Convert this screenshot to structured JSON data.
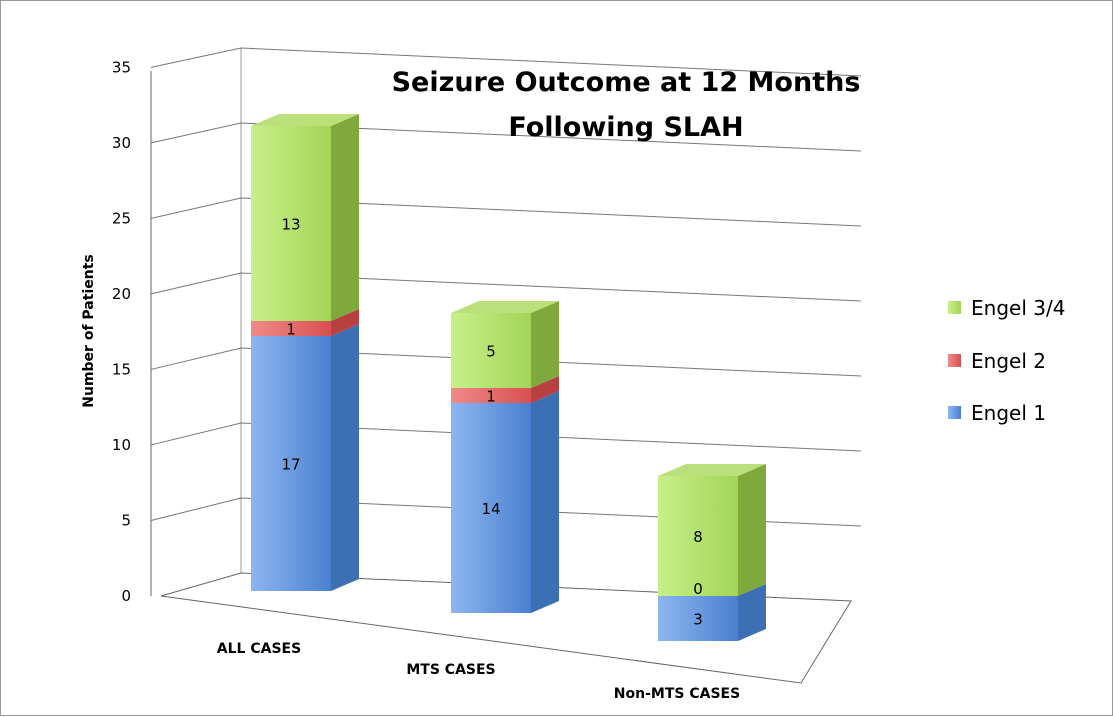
{
  "chart_data": {
    "type": "bar",
    "stacked": true,
    "three_d": true,
    "title": "Seizure Outcome at 12 Months Following SLAH",
    "title_lines": [
      "Seizure Outcome at 12 Months",
      "Following SLAH"
    ],
    "xlabel": "",
    "ylabel": "Number of Patients",
    "ylim": [
      0,
      35
    ],
    "yticks": [
      0,
      5,
      10,
      15,
      20,
      25,
      30,
      35
    ],
    "grid": true,
    "legend_position": "right",
    "categories": [
      "ALL CASES",
      "MTS CASES",
      "Non-MTS CASES"
    ],
    "series": [
      {
        "name": "Engel 1",
        "values": [
          17,
          14,
          3
        ],
        "color": "#5b8fd6"
      },
      {
        "name": "Engel 2",
        "values": [
          1,
          1,
          0
        ],
        "color": "#e06060"
      },
      {
        "name": "Engel 3/4",
        "values": [
          13,
          5,
          8
        ],
        "color": "#a7d55a"
      }
    ]
  }
}
